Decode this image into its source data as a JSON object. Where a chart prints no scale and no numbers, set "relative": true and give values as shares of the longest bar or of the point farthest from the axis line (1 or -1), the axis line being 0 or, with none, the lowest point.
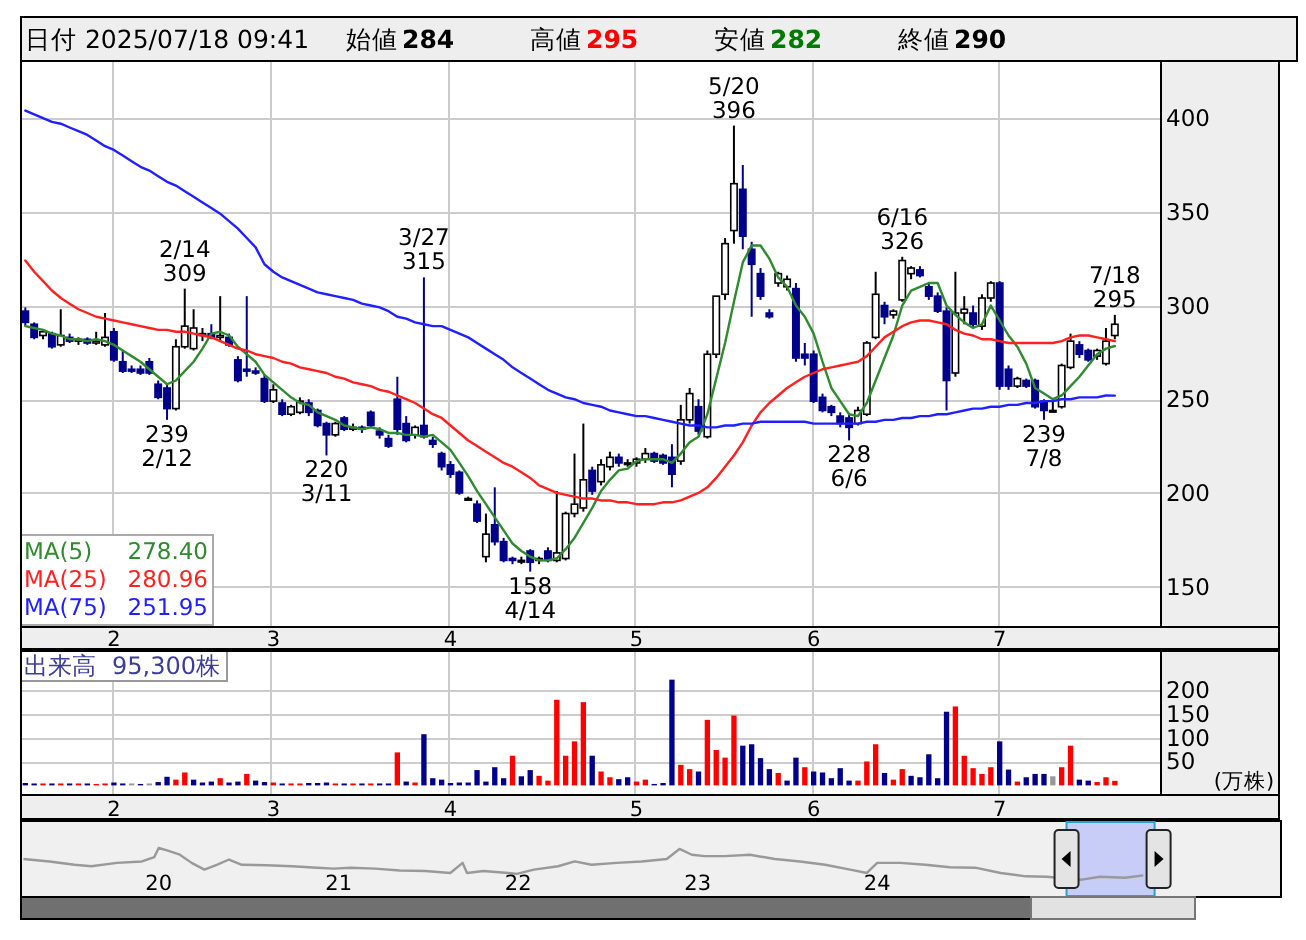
{
  "chart_data": [
    {
      "type": "other",
      "annotations": [
        "日付 2025/07/18 09:41",
        "始値",
        "284",
        "高値",
        "295",
        "安値",
        "282",
        "終値",
        "290"
      ]
    },
    {
      "type": "candlestick",
      "categories": [
        null,
        null,
        null,
        null,
        null,
        null,
        null,
        null,
        null,
        null,
        "2",
        null,
        null,
        null,
        null,
        null,
        null,
        null,
        null,
        null,
        null,
        null,
        null,
        null,
        null,
        null,
        null,
        null,
        "3",
        null,
        null,
        null,
        null,
        null,
        null,
        null,
        null,
        null,
        null,
        null,
        null,
        null,
        null,
        null,
        null,
        null,
        null,
        null,
        "4",
        null,
        null,
        null,
        null,
        null,
        null,
        null,
        null,
        null,
        null,
        null,
        null,
        null,
        null,
        null,
        null,
        null,
        null,
        null,
        null,
        "5",
        null,
        null,
        null,
        null,
        null,
        null,
        null,
        null,
        null,
        null,
        null,
        null,
        null,
        null,
        null,
        null,
        null,
        null,
        null,
        "6",
        null,
        null,
        null,
        null,
        null,
        null,
        null,
        null,
        null,
        null,
        null,
        null,
        null,
        null,
        null,
        null,
        null,
        null,
        null,
        null,
        "7",
        null,
        null,
        null,
        null,
        null,
        null,
        null,
        null,
        null,
        null,
        null,
        null,
        null
      ],
      "ohlc": [
        [
          297,
          299,
          289,
          291
        ],
        [
          290,
          291,
          282,
          283
        ],
        [
          284,
          287,
          282,
          286
        ],
        [
          285,
          286,
          277,
          278
        ],
        [
          279,
          298,
          278,
          284
        ],
        [
          283,
          285,
          280,
          281
        ],
        [
          281,
          283,
          279,
          282
        ],
        [
          282,
          283,
          279,
          280
        ],
        [
          280,
          286,
          279,
          281
        ],
        [
          279,
          296,
          278,
          283
        ],
        [
          286,
          288,
          270,
          271
        ],
        [
          270,
          276,
          264,
          265
        ],
        [
          266,
          268,
          264,
          265
        ],
        [
          266,
          268,
          263,
          264
        ],
        [
          270,
          272,
          263,
          264
        ],
        [
          258,
          260,
          250,
          251
        ],
        [
          256,
          258,
          239,
          245
        ],
        [
          245,
          282,
          244,
          278
        ],
        [
          278,
          309,
          277,
          289
        ],
        [
          277,
          298,
          276,
          288
        ],
        [
          284,
          288,
          281,
          285
        ],
        [
          285,
          290,
          282,
          283
        ],
        [
          283,
          305,
          281,
          284
        ],
        [
          283,
          285,
          278,
          279
        ],
        [
          271,
          273,
          259,
          260
        ],
        [
          266,
          305,
          262,
          265
        ],
        [
          265,
          267,
          263,
          264
        ],
        [
          261,
          263,
          248,
          249
        ],
        [
          249,
          258,
          248,
          255
        ],
        [
          248,
          250,
          241,
          242
        ],
        [
          242,
          247,
          241,
          246
        ],
        [
          243,
          251,
          242,
          249
        ],
        [
          248,
          250,
          241,
          243
        ],
        [
          244,
          245,
          235,
          236
        ],
        [
          237,
          238,
          220,
          231
        ],
        [
          231,
          238,
          230,
          237
        ],
        [
          240,
          241,
          233,
          234
        ],
        [
          234,
          237,
          233,
          235
        ],
        [
          235,
          236,
          232,
          234
        ],
        [
          243,
          244,
          235,
          236
        ],
        [
          233,
          235,
          229,
          231
        ],
        [
          229,
          231,
          224,
          225
        ],
        [
          250,
          262,
          231,
          234
        ],
        [
          237,
          241,
          227,
          228
        ],
        [
          231,
          236,
          229,
          235
        ],
        [
          236,
          315,
          229,
          230
        ],
        [
          228,
          230,
          224,
          226
        ],
        [
          221,
          222,
          212,
          214
        ],
        [
          215,
          217,
          208,
          210
        ],
        [
          211,
          212,
          199,
          200
        ],
        [
          197,
          198,
          196,
          197
        ],
        [
          194,
          196,
          184,
          185
        ],
        [
          166,
          189,
          163,
          178
        ],
        [
          183,
          203,
          172,
          174
        ],
        [
          174,
          176,
          163,
          164
        ],
        [
          165,
          166,
          162,
          164
        ],
        [
          164,
          166,
          162,
          164
        ],
        [
          169,
          170,
          158,
          163
        ],
        [
          164,
          166,
          162,
          165
        ],
        [
          169,
          171,
          163,
          164
        ],
        [
          164,
          201,
          163,
          168
        ],
        [
          165,
          190,
          164,
          189
        ],
        [
          189,
          221,
          187,
          194
        ],
        [
          192,
          237,
          190,
          207
        ],
        [
          212,
          214,
          199,
          201
        ],
        [
          206,
          218,
          204,
          215
        ],
        [
          214,
          222,
          212,
          219
        ],
        [
          219,
          221,
          214,
          216
        ],
        [
          216,
          218,
          214,
          216
        ],
        [
          216,
          219,
          214,
          218
        ],
        [
          218,
          224,
          216,
          221
        ],
        [
          221,
          222,
          216,
          217
        ],
        [
          220,
          221,
          215,
          216
        ],
        [
          219,
          226,
          203,
          210
        ],
        [
          217,
          247,
          215,
          239
        ],
        [
          239,
          256,
          237,
          253
        ],
        [
          246,
          250,
          231,
          233
        ],
        [
          230,
          276,
          229,
          274
        ],
        [
          274,
          305,
          272,
          305
        ],
        [
          306,
          336,
          303,
          333
        ],
        [
          340,
          396,
          333,
          365
        ],
        [
          362,
          375,
          330,
          337
        ],
        [
          330,
          334,
          294,
          322
        ],
        [
          317,
          320,
          303,
          305
        ],
        [
          296,
          298,
          293,
          294
        ],
        [
          312,
          318,
          310,
          317
        ],
        [
          310,
          316,
          308,
          314
        ],
        [
          309,
          312,
          270,
          272
        ],
        [
          274,
          280,
          268,
          272
        ],
        [
          274,
          276,
          248,
          249
        ],
        [
          251,
          253,
          243,
          244
        ],
        [
          246,
          247,
          241,
          243
        ],
        [
          241,
          243,
          235,
          237
        ],
        [
          240,
          242,
          228,
          235
        ],
        [
          237,
          246,
          236,
          244
        ],
        [
          242,
          281,
          241,
          280
        ],
        [
          283,
          318,
          282,
          306
        ],
        [
          300,
          302,
          290,
          294
        ],
        [
          295,
          298,
          293,
          297
        ],
        [
          303,
          326,
          302,
          324
        ],
        [
          317,
          321,
          314,
          320
        ],
        [
          319,
          321,
          315,
          316
        ],
        [
          310,
          312,
          303,
          305
        ],
        [
          305,
          307,
          296,
          297
        ],
        [
          297,
          299,
          244,
          260
        ],
        [
          264,
          318,
          262,
          296
        ],
        [
          296,
          305,
          290,
          298
        ],
        [
          296,
          300,
          288,
          290
        ],
        [
          289,
          306,
          287,
          304
        ],
        [
          304,
          313,
          302,
          312
        ],
        [
          312,
          313,
          255,
          257
        ],
        [
          266,
          268,
          255,
          257
        ],
        [
          257,
          262,
          256,
          261
        ],
        [
          260,
          261,
          256,
          257
        ],
        [
          260,
          261,
          245,
          246
        ],
        [
          249,
          250,
          239,
          244
        ],
        [
          244,
          250,
          243,
          244
        ],
        [
          246,
          269,
          245,
          268
        ],
        [
          267,
          285,
          266,
          281
        ],
        [
          279,
          281,
          272,
          274
        ],
        [
          276,
          277,
          270,
          271
        ],
        [
          273,
          277,
          271,
          276
        ],
        [
          269,
          288,
          268,
          281
        ],
        [
          284,
          295,
          282,
          290
        ]
      ],
      "series": [
        {
          "name": "MA(5)",
          "type": "line",
          "color": "#2e8b2e",
          "values": [
            289,
            288,
            287,
            285,
            284,
            282,
            282,
            281,
            282,
            281,
            279,
            276,
            273,
            270,
            266,
            262,
            258,
            260,
            265,
            270,
            277,
            285,
            286,
            284,
            278,
            274,
            270,
            263,
            259,
            255,
            251,
            248,
            247,
            243,
            241,
            239,
            236,
            235,
            234,
            235,
            234,
            232,
            232,
            231,
            231,
            230,
            231,
            227,
            223,
            216,
            209,
            201,
            194,
            187,
            180,
            173,
            169,
            166,
            164,
            164,
            165,
            170,
            176,
            184,
            192,
            201,
            207,
            212,
            213,
            217,
            218,
            218,
            218,
            216,
            221,
            227,
            230,
            242,
            261,
            280,
            302,
            323,
            332,
            332,
            325,
            315,
            310,
            300,
            294,
            285,
            270,
            256,
            249,
            242,
            241,
            248,
            260,
            272,
            284,
            300,
            308,
            310,
            312,
            312,
            300,
            295,
            291,
            288,
            290,
            300,
            292,
            284,
            278,
            269,
            256,
            253,
            250,
            252,
            257,
            262,
            268,
            274,
            277,
            278.4
          ]
        },
        {
          "name": "MA(25)",
          "type": "line",
          "color": "#ff2020",
          "values": [
            324,
            318,
            313,
            308,
            304,
            301,
            298,
            296,
            294,
            293,
            292,
            291,
            290,
            289,
            288,
            287,
            287,
            286,
            286,
            285,
            284,
            283,
            281,
            279,
            277,
            276,
            274,
            273,
            272,
            270,
            269,
            267,
            266,
            265,
            264,
            262,
            261,
            259,
            258,
            257,
            255,
            254,
            252,
            250,
            248,
            245,
            242,
            240,
            236,
            232,
            228,
            225,
            222,
            219,
            216,
            214,
            211,
            208,
            204,
            202,
            200,
            199,
            198,
            197,
            197,
            196,
            196,
            195,
            195,
            194,
            194,
            194,
            195,
            195,
            196,
            198,
            200,
            203,
            208,
            214,
            220,
            227,
            236,
            243,
            248,
            252,
            256,
            259,
            262,
            264,
            266,
            267,
            268,
            269,
            270,
            273,
            278,
            283,
            286,
            289,
            291,
            292,
            292,
            291,
            290,
            287,
            285,
            284,
            282,
            282,
            281,
            280,
            280,
            280,
            280,
            280,
            280,
            281,
            283,
            284,
            284,
            283,
            282,
            280.96
          ]
        },
        {
          "name": "MA(75)",
          "type": "line",
          "color": "#2020ff",
          "values": [
            404,
            402,
            400,
            398,
            397,
            395,
            393,
            391,
            388,
            385,
            383,
            380,
            377,
            374,
            372,
            369,
            366,
            364,
            361,
            358,
            355,
            352,
            349,
            345,
            341,
            336,
            331,
            322,
            318,
            315,
            313,
            311,
            309,
            307,
            306,
            305,
            304,
            303,
            301,
            300,
            299,
            297,
            294,
            293,
            291,
            290,
            289,
            289,
            287,
            285,
            283,
            280,
            277,
            274,
            271,
            267,
            264,
            261,
            258,
            255,
            253,
            251,
            250,
            248,
            247,
            246,
            244,
            243,
            242,
            241,
            241,
            240,
            239,
            238,
            237,
            236,
            236,
            235,
            235,
            236,
            236,
            237,
            237,
            238,
            238,
            238,
            238,
            238,
            238,
            237,
            237,
            237,
            237,
            237,
            237,
            238,
            238,
            239,
            239,
            240,
            240,
            241,
            241,
            242,
            242,
            243,
            244,
            245,
            245,
            246,
            246,
            247,
            247,
            248,
            248,
            249,
            249,
            250,
            250,
            251,
            251,
            251,
            252,
            251.95
          ]
        }
      ],
      "ylim": [
        129,
        431
      ],
      "yticks": [
        150,
        200,
        250,
        300,
        350,
        400
      ],
      "grid": true,
      "legend": "bottom left",
      "annotations": [
        "278.40",
        "280.96",
        "251.95",
        {
          "text": "2/14\n309",
          "y": 309
        },
        {
          "text": "239\n2/12",
          "y": 239
        },
        {
          "text": "220\n3/11",
          "y": 220
        },
        {
          "text": "3/27\n315",
          "y": 315
        },
        {
          "text": "158\n4/14",
          "y": 158
        },
        {
          "text": "5/20\n396",
          "y": 396
        },
        {
          "text": "228\n6/6",
          "y": 228
        },
        {
          "text": "6/16\n326",
          "y": 326
        },
        {
          "text": "239\n7/8",
          "y": 239
        },
        {
          "text": "7/18\n295",
          "y": 295
        }
      ]
    },
    {
      "type": "bar",
      "categories": [
        null,
        null,
        null,
        null,
        null,
        null,
        null,
        null,
        null,
        null,
        "2",
        null,
        null,
        null,
        null,
        null,
        null,
        null,
        null,
        null,
        null,
        null,
        null,
        null,
        null,
        null,
        null,
        null,
        "3",
        null,
        null,
        null,
        null,
        null,
        null,
        null,
        null,
        null,
        null,
        null,
        null,
        null,
        null,
        null,
        null,
        null,
        null,
        null,
        "4",
        null,
        null,
        null,
        null,
        null,
        null,
        null,
        null,
        null,
        null,
        null,
        null,
        null,
        null,
        null,
        null,
        null,
        null,
        null,
        null,
        "5",
        null,
        null,
        null,
        null,
        null,
        null,
        null,
        null,
        null,
        null,
        null,
        null,
        null,
        null,
        null,
        null,
        null,
        null,
        null,
        "6",
        null,
        null,
        null,
        null,
        null,
        null,
        null,
        null,
        null,
        null,
        null,
        null,
        null,
        null,
        null,
        null,
        null,
        null,
        null,
        null,
        "7",
        null,
        null,
        null,
        null,
        null,
        null,
        null,
        null,
        null,
        null,
        null,
        null,
        null
      ],
      "values": [
        5,
        4,
        4,
        4,
        4,
        4,
        4,
        4,
        3,
        4,
        6,
        4,
        4,
        3,
        4,
        7,
        18,
        12,
        27,
        12,
        6,
        8,
        15,
        6,
        8,
        24,
        10,
        7,
        6,
        4,
        4,
        4,
        5,
        5,
        6,
        4,
        4,
        4,
        4,
        4,
        4,
        4,
        69,
        8,
        6,
        107,
        15,
        12,
        5,
        6,
        6,
        32,
        8,
        38,
        15,
        62,
        19,
        32,
        20,
        10,
        179,
        62,
        92,
        174,
        62,
        29,
        17,
        13,
        17,
        8,
        12,
        3,
        5,
        221,
        43,
        34,
        29,
        137,
        74,
        58,
        146,
        83,
        86,
        57,
        34,
        26,
        10,
        58,
        38,
        29,
        27,
        15,
        36,
        10,
        10,
        50,
        86,
        26,
        12,
        34,
        20,
        17,
        65,
        15,
        154,
        165,
        62,
        36,
        24,
        38,
        92,
        33,
        8,
        17,
        24,
        24,
        19,
        38,
        83,
        12,
        10,
        7,
        17,
        9.53
      ],
      "colors": [
        "#00008b",
        "#00008b",
        "#ff0000",
        "#00008b",
        "#ff0000",
        "#00008b",
        "#ff0000",
        "#00008b",
        "#ff0000",
        "#ff0000",
        "#00008b",
        "#00008b",
        "#999999",
        "#00008b",
        "#999999",
        "#00008b",
        "#00008b",
        "#ff0000",
        "#ff0000",
        "#00008b",
        "#00008b",
        "#00008b",
        "#ff0000",
        "#00008b",
        "#00008b",
        "#ff0000",
        "#00008b",
        "#00008b",
        "#ff0000",
        "#00008b",
        "#ff0000",
        "#ff0000",
        "#00008b",
        "#00008b",
        "#00008b",
        "#ff0000",
        "#00008b",
        "#ff0000",
        "#00008b",
        "#ff0000",
        "#00008b",
        "#00008b",
        "#ff0000",
        "#00008b",
        "#ff0000",
        "#00008b",
        "#00008b",
        "#00008b",
        "#00008b",
        "#00008b",
        "#00008b",
        "#00008b",
        "#00008b",
        "#00008b",
        "#00008b",
        "#ff0000",
        "#00008b",
        "#00008b",
        "#ff0000",
        "#ff0000",
        "#ff0000",
        "#ff0000",
        "#ff0000",
        "#ff0000",
        "#00008b",
        "#ff0000",
        "#ff0000",
        "#00008b",
        "#00008b",
        "#ff0000",
        "#ff0000",
        "#00008b",
        "#00008b",
        "#00008b",
        "#ff0000",
        "#ff0000",
        "#00008b",
        "#ff0000",
        "#ff0000",
        "#ff0000",
        "#ff0000",
        "#00008b",
        "#00008b",
        "#00008b",
        "#00008b",
        "#ff0000",
        "#00008b",
        "#00008b",
        "#ff0000",
        "#00008b",
        "#00008b",
        "#00008b",
        "#00008b",
        "#00008b",
        "#ff0000",
        "#ff0000",
        "#ff0000",
        "#00008b",
        "#ff0000",
        "#ff0000",
        "#00008b",
        "#00008b",
        "#00008b",
        "#00008b",
        "#00008b",
        "#ff0000",
        "#ff0000",
        "#ff0000",
        "#ff0000",
        "#ff0000",
        "#00008b",
        "#00008b",
        "#ff0000",
        "#00008b",
        "#00008b",
        "#00008b",
        "#999999",
        "#ff0000",
        "#ff0000",
        "#00008b",
        "#00008b",
        "#ff0000",
        "#ff0000",
        "#ff0000"
      ],
      "ylim": [
        -18,
        283
      ],
      "yticks": [
        50,
        100,
        150,
        200
      ],
      "grid": true,
      "ylabel": "(万株)",
      "annotations": [
        "出来高",
        "95,300株"
      ]
    },
    {
      "type": "line",
      "relative": true,
      "color": "#999999",
      "x": [
        "2019-04-01",
        "2019-05-24",
        "2019-07-14",
        "2019-08-17",
        "2019-10-08",
        "2019-11-28",
        "2019-12-23",
        "2020-01-01",
        "2020-01-18",
        "2020-02-13",
        "2020-03-08",
        "2020-04-03",
        "2020-04-28",
        "2020-05-23",
        "2020-06-18",
        "2020-08-08",
        "2020-09-28",
        "2020-11-18",
        "2020-12-22",
        "2021-01-25",
        "2021-03-16",
        "2021-05-05",
        "2021-06-26",
        "2021-08-16",
        "2021-09-10",
        "2021-09-19",
        "2021-10-22",
        "2021-12-12",
        "2021-12-29",
        "2022-02-02",
        "2022-03-23",
        "2022-04-26",
        "2022-05-30",
        "2022-07-20",
        "2022-09-09",
        "2022-10-30",
        "2022-11-25",
        "2022-12-20",
        "2023-01-15",
        "2023-02-25",
        "2023-04-17",
        "2023-06-07",
        "2023-07-28",
        "2023-09-17",
        "2023-11-07",
        "2023-12-11",
        "2024-01-01",
        "2024-02-17",
        "2024-04-08",
        "2024-05-28",
        "2024-07-18",
        "2024-09-08",
        "2024-10-29",
        "2024-12-10",
        "2025-02-20",
        "2025-03-29",
        "2025-05-19",
        "2025-06-25"
      ],
      "values": [
        0.77,
        0.72,
        0.65,
        0.62,
        0.69,
        0.72,
        0.81,
        1.0,
        0.95,
        0.86,
        0.69,
        0.55,
        0.65,
        0.76,
        0.65,
        0.64,
        0.62,
        0.59,
        0.57,
        0.59,
        0.57,
        0.53,
        0.52,
        0.48,
        0.69,
        0.48,
        0.52,
        0.48,
        0.46,
        0.55,
        0.62,
        0.72,
        0.65,
        0.69,
        0.72,
        0.77,
        0.98,
        0.86,
        0.83,
        0.83,
        0.86,
        0.77,
        0.72,
        0.65,
        0.55,
        0.48,
        0.69,
        0.69,
        0.65,
        0.6,
        0.59,
        0.48,
        0.41,
        0.4,
        0.34,
        0.4,
        0.38,
        0.43
      ],
      "xlim": [
        "2019-03-25",
        "2026-03-30"
      ],
      "xticks": [
        {
          "value": "2020-01-01",
          "label": "20"
        },
        {
          "value": "2021-01-01",
          "label": "21"
        },
        {
          "value": "2022-01-01",
          "label": "22"
        },
        {
          "value": "2023-01-01",
          "label": "23"
        },
        {
          "value": "2024-01-01",
          "label": "24"
        }
      ],
      "bands": [
        {
          "axis": "x",
          "from": "2025-01-20",
          "to": "2025-07-18",
          "color": "#a8b0ff"
        }
      ]
    }
  ]
}
